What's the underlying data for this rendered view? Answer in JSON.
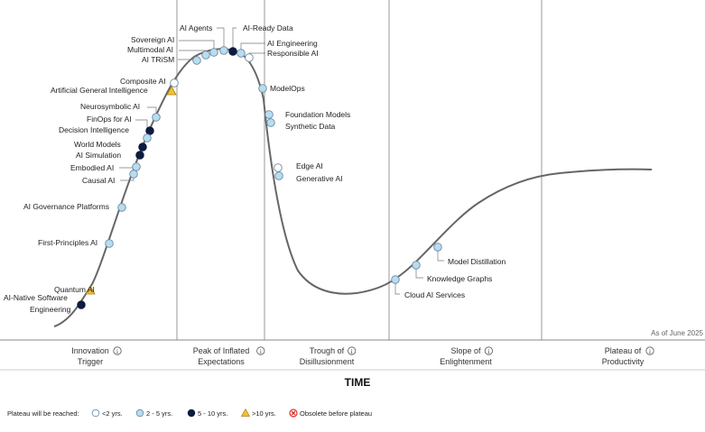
{
  "chart_data": {
    "type": "scatter",
    "xlabel": "TIME",
    "as_of": "As of June 2025",
    "phases": [
      {
        "name": "Innovation Trigger",
        "line1": "Innovation",
        "line2": "Trigger"
      },
      {
        "name": "Peak of Inflated Expectations",
        "line1": "Peak of Inflated",
        "line2": "Expectations"
      },
      {
        "name": "Trough of Disillusionment",
        "line1": "Trough of",
        "line2": "Disillusionment"
      },
      {
        "name": "Slope of Enlightenment",
        "line1": "Slope of",
        "line2": "Enlightenment"
      },
      {
        "name": "Plateau of Productivity",
        "line1": "Plateau of",
        "line2": "Productivity"
      }
    ],
    "legend": {
      "title": "Plateau will be reached:",
      "items": [
        {
          "key": "lt2",
          "label": "<2 yrs.",
          "marker": "circle",
          "color": "#ffffff"
        },
        {
          "key": "2to5",
          "label": "2 - 5 yrs.",
          "marker": "circle",
          "color": "#b8dcf0"
        },
        {
          "key": "5to10",
          "label": "5 - 10 yrs.",
          "marker": "circle",
          "color": "#0d1b3e"
        },
        {
          "key": "gt10",
          "label": ">10 yrs.",
          "marker": "triangle",
          "color": "#f2c12e"
        },
        {
          "key": "obsolete",
          "label": "Obsolete before plateau",
          "marker": "cross",
          "color": "#e0312b"
        }
      ]
    },
    "points": [
      {
        "name": "AI-Native Software Engineering",
        "plateau": "5to10"
      },
      {
        "name": "Quantum AI",
        "plateau": "gt10"
      },
      {
        "name": "First-Principles AI",
        "plateau": "2to5"
      },
      {
        "name": "AI Governance Platforms",
        "plateau": "2to5"
      },
      {
        "name": "Causal AI",
        "plateau": "2to5"
      },
      {
        "name": "Embodied AI",
        "plateau": "2to5"
      },
      {
        "name": "AI Simulation",
        "plateau": "5to10"
      },
      {
        "name": "World Models",
        "plateau": "5to10"
      },
      {
        "name": "Decision Intelligence",
        "plateau": "5to10"
      },
      {
        "name": "FinOps for AI",
        "plateau": "2to5"
      },
      {
        "name": "Neurosymbolic AI",
        "plateau": "2to5"
      },
      {
        "name": "Artificial General Intelligence",
        "plateau": "gt10"
      },
      {
        "name": "Composite AI",
        "plateau": "lt2"
      },
      {
        "name": "AI TRiSM",
        "plateau": "2to5"
      },
      {
        "name": "Multimodal AI",
        "plateau": "2to5"
      },
      {
        "name": "Sovereign AI",
        "plateau": "2to5"
      },
      {
        "name": "AI Agents",
        "plateau": "2to5"
      },
      {
        "name": "AI-Ready Data",
        "plateau": "5to10"
      },
      {
        "name": "AI Engineering",
        "plateau": "2to5"
      },
      {
        "name": "Responsible AI",
        "plateau": "lt2"
      },
      {
        "name": "ModelOps",
        "plateau": "2to5"
      },
      {
        "name": "Foundation Models",
        "plateau": "2to5"
      },
      {
        "name": "Synthetic Data",
        "plateau": "2to5"
      },
      {
        "name": "Edge AI",
        "plateau": "lt2"
      },
      {
        "name": "Generative AI",
        "plateau": "2to5"
      },
      {
        "name": "Cloud AI Services",
        "plateau": "2to5"
      },
      {
        "name": "Knowledge Graphs",
        "plateau": "2to5"
      },
      {
        "name": "Model Distillation",
        "plateau": "2to5"
      }
    ]
  }
}
